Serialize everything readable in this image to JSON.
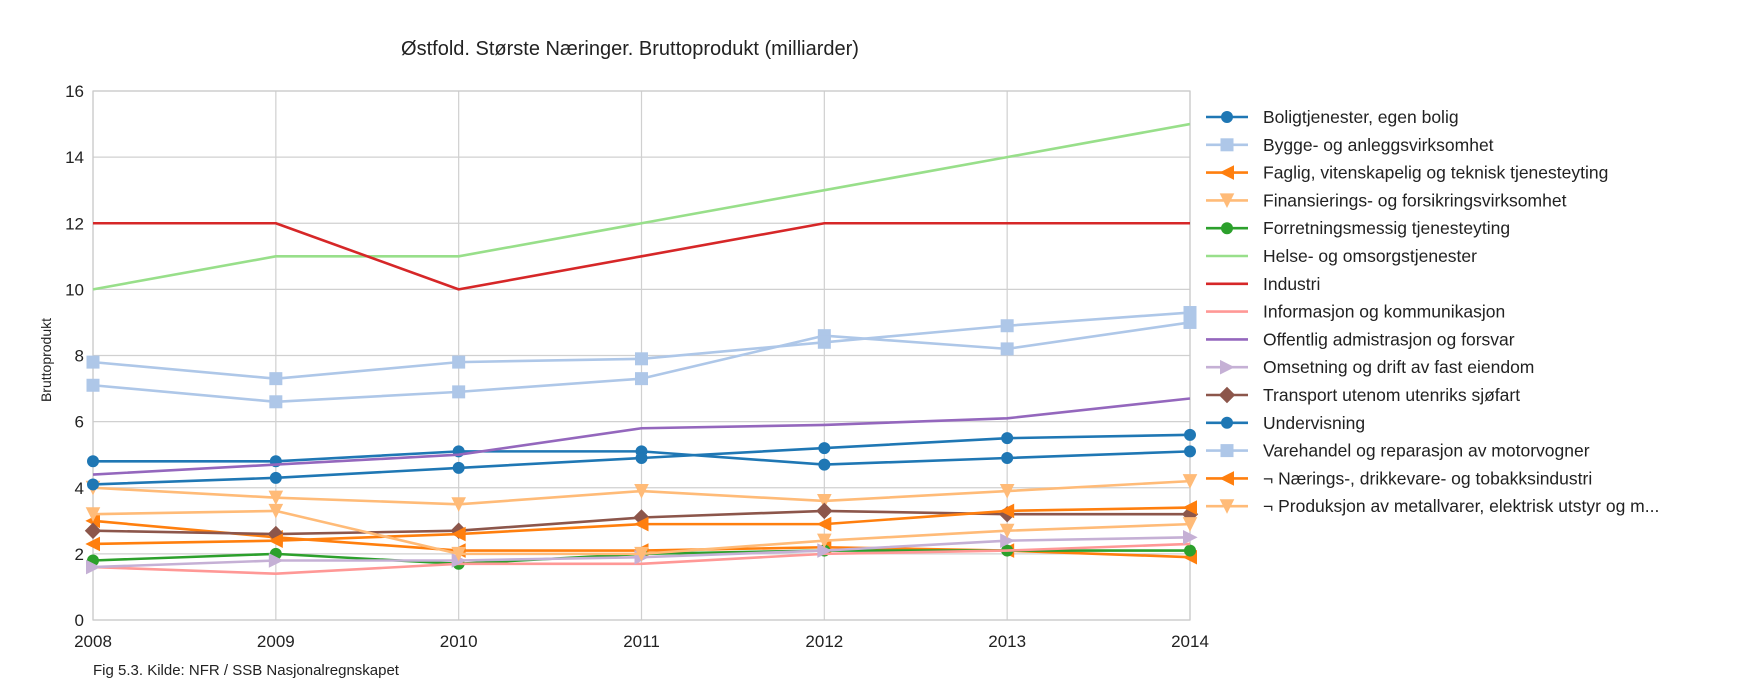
{
  "chart_data": {
    "type": "line",
    "title": "Østfold. Største Næringer. Bruttoprodukt (milliarder)",
    "ylabel": "Bruttoprodukt",
    "xlabel": "",
    "x": [
      2008,
      2009,
      2010,
      2011,
      2012,
      2013,
      2014
    ],
    "xlim": [
      2008,
      2014
    ],
    "ylim": [
      0,
      16
    ],
    "yticks": [
      0,
      2,
      4,
      6,
      8,
      10,
      12,
      14,
      16
    ],
    "grid": true,
    "legend": "right",
    "caption": "Fig 5.3. Kilde: NFR / SSB Nasjonalregnskapet",
    "series": [
      {
        "name": "Boligtjenester, egen bolig",
        "color": "#1f77b4",
        "marker": "circle",
        "values": [
          4.8,
          4.8,
          5.1,
          5.1,
          4.7,
          4.9,
          5.1
        ]
      },
      {
        "name": "Bygge- og anleggsvirksomhet",
        "color": "#aec7e8",
        "marker": "square",
        "values": [
          7.1,
          6.6,
          6.9,
          7.3,
          8.6,
          8.2,
          9.0
        ]
      },
      {
        "name": "Faglig, vitenskapelig og teknisk tjenesteyting",
        "color": "#ff7f0e",
        "marker": "triangle-left",
        "values": [
          3.0,
          2.5,
          2.1,
          2.1,
          2.2,
          2.1,
          1.9
        ]
      },
      {
        "name": "Finansierings- og forsikringsvirksomhet",
        "color": "#ffbb78",
        "marker": "triangle-down",
        "values": [
          4.0,
          3.7,
          3.5,
          3.9,
          3.6,
          3.9,
          4.2
        ]
      },
      {
        "name": "Forretningsmessig tjenesteyting",
        "color": "#2ca02c",
        "marker": "circle",
        "values": [
          1.8,
          2.0,
          1.7,
          2.0,
          2.1,
          2.1,
          2.1
        ]
      },
      {
        "name": "Helse- og omsorgstjenester",
        "color": "#98df8a",
        "marker": "none",
        "values": [
          10,
          11,
          11,
          12,
          13,
          14,
          15
        ]
      },
      {
        "name": "Industri",
        "color": "#d62728",
        "marker": "none",
        "values": [
          12,
          12,
          10,
          11,
          12,
          12,
          12
        ]
      },
      {
        "name": "Informasjon og kommunikasjon",
        "color": "#ff9896",
        "marker": "none",
        "values": [
          1.6,
          1.4,
          1.7,
          1.7,
          2.0,
          2.1,
          2.3
        ]
      },
      {
        "name": "Offentlig admistrasjon og forsvar",
        "color": "#9467bd",
        "marker": "none",
        "values": [
          4.4,
          4.7,
          5.0,
          5.8,
          5.9,
          6.1,
          6.7
        ]
      },
      {
        "name": "Omsetning og drift av fast eiendom",
        "color": "#c5b0d5",
        "marker": "triangle-right",
        "values": [
          1.6,
          1.8,
          1.8,
          1.9,
          2.1,
          2.4,
          2.5
        ]
      },
      {
        "name": "Transport utenom utenriks sjøfart",
        "color": "#8c564b",
        "marker": "diamond",
        "values": [
          2.7,
          2.6,
          2.7,
          3.1,
          3.3,
          3.2,
          3.2
        ]
      },
      {
        "name": "Undervisning",
        "color": "#1f77b4",
        "marker": "circle",
        "values": [
          4.1,
          4.3,
          4.6,
          4.9,
          5.2,
          5.5,
          5.6
        ]
      },
      {
        "name": "Varehandel og reparasjon av motorvogner",
        "color": "#aec7e8",
        "marker": "square",
        "values": [
          7.8,
          7.3,
          7.8,
          7.9,
          8.4,
          8.9,
          9.3
        ]
      },
      {
        "name": "¬ Nærings-, drikkevare- og tobakksindustri",
        "color": "#ff7f0e",
        "marker": "triangle-left",
        "values": [
          2.3,
          2.4,
          2.6,
          2.9,
          2.9,
          3.3,
          3.4
        ]
      },
      {
        "name": "¬ Produksjon av metallvarer, elektrisk utstyr og m...",
        "color": "#ffbb78",
        "marker": "triangle-down",
        "values": [
          3.2,
          3.3,
          2.0,
          2.0,
          2.4,
          2.7,
          2.9
        ]
      }
    ]
  }
}
